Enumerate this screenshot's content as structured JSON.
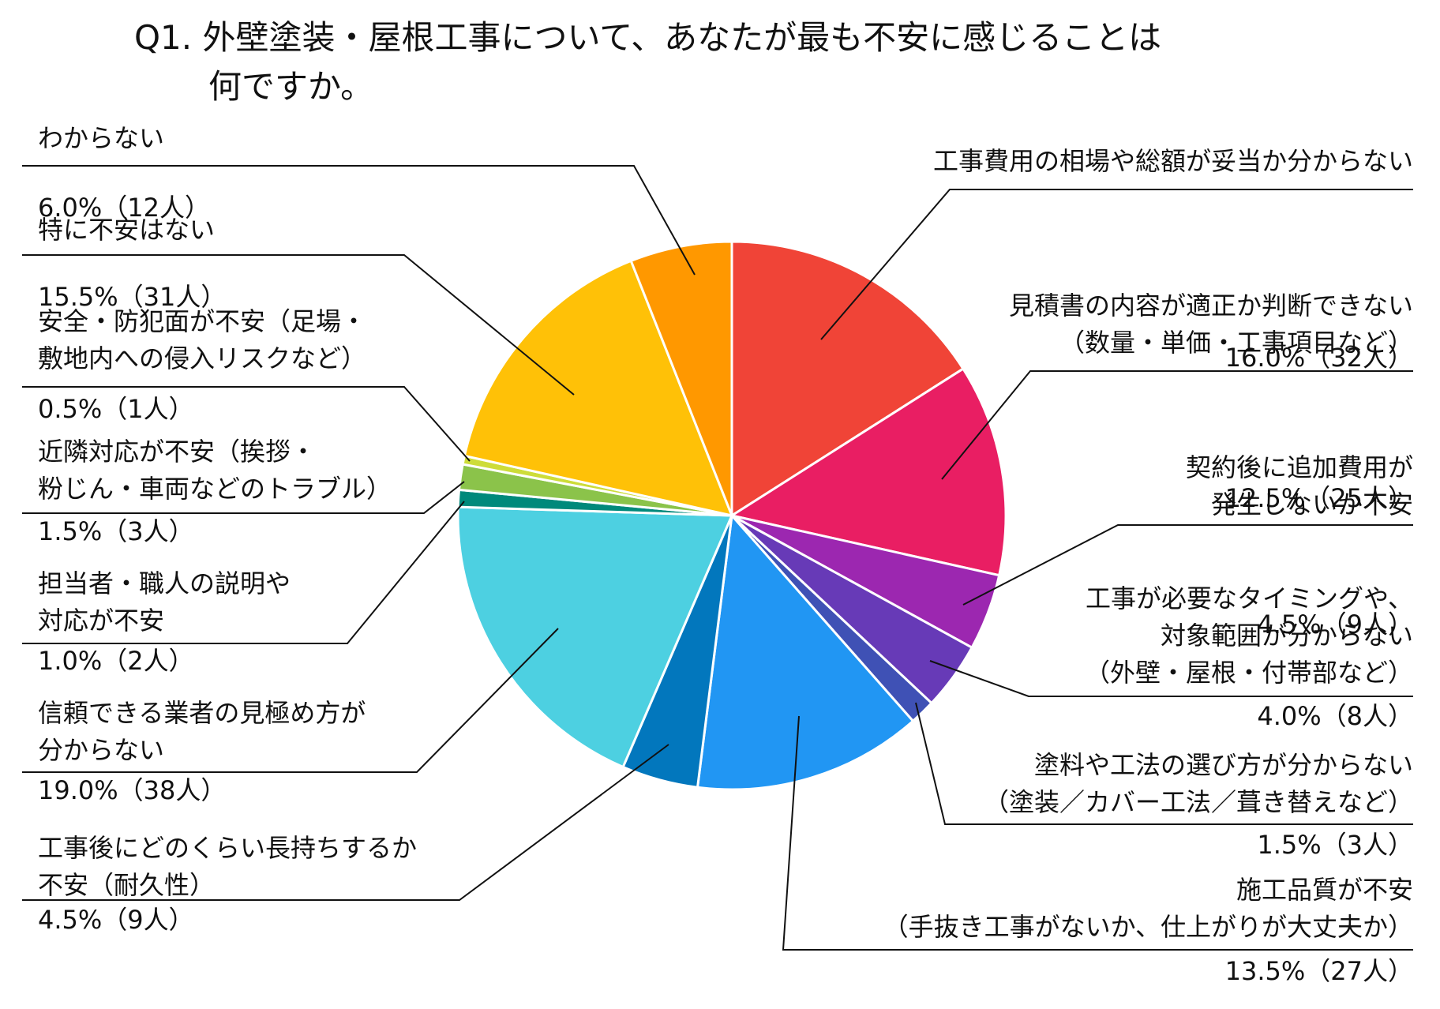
{
  "chart_data": {
    "type": "pie",
    "title_lines": [
      "Q1. 外壁塗装・屋根工事について、あなたが最も不安に感じることは",
      "何ですか。"
    ],
    "start_angle_deg": 0,
    "direction": "clockwise",
    "slices": [
      {
        "label_lines": [
          "工事費用の相場や総額が妥当か分からない"
        ],
        "value": 16.0,
        "count": 32,
        "value_label": "16.0%（32人）",
        "color": "#F04437"
      },
      {
        "label_lines": [
          "見積書の内容が適正か判断できない",
          "（数量・単価・工事項目など）"
        ],
        "value": 12.5,
        "count": 25,
        "value_label": "12.5%（25人）",
        "color": "#E91E63"
      },
      {
        "label_lines": [
          "契約後に追加費用が",
          "発生しないか不安"
        ],
        "value": 4.5,
        "count": 9,
        "value_label": "4.5%（9人）",
        "color": "#9C27B0"
      },
      {
        "label_lines": [
          "工事が必要なタイミングや、",
          "対象範囲が分からない",
          "（外壁・屋根・付帯部など）"
        ],
        "value": 4.0,
        "count": 8,
        "value_label": "4.0%（8人）",
        "color": "#673AB7"
      },
      {
        "label_lines": [
          "塗料や工法の選び方が分からない",
          "（塗装／カバー工法／葺き替えなど）"
        ],
        "value": 1.5,
        "count": 3,
        "value_label": "1.5%（3人）",
        "color": "#3F51B5"
      },
      {
        "label_lines": [
          "施工品質が不安",
          "（手抜き工事がないか、仕上がりが大丈夫か）"
        ],
        "value": 13.5,
        "count": 27,
        "value_label": "13.5%（27人）",
        "color": "#2196F3"
      },
      {
        "label_lines": [
          "工事後にどのくらい長持ちするか",
          "不安（耐久性）"
        ],
        "value": 4.5,
        "count": 9,
        "value_label": "4.5%（9人）",
        "color": "#0277BD"
      },
      {
        "label_lines": [
          "信頼できる業者の見極め方が",
          "分からない"
        ],
        "value": 19.0,
        "count": 38,
        "value_label": "19.0%（38人）",
        "color": "#4DD0E1"
      },
      {
        "label_lines": [
          "担当者・職人の説明や",
          "対応が不安"
        ],
        "value": 1.0,
        "count": 2,
        "value_label": "1.0%（2人）",
        "color": "#00897B"
      },
      {
        "label_lines": [
          "近隣対応が不安（挨拶・",
          "粉じん・車両などのトラブル）"
        ],
        "value": 1.5,
        "count": 3,
        "value_label": "1.5%（3人）",
        "color": "#8BC34A"
      },
      {
        "label_lines": [
          "安全・防犯面が不安（足場・",
          "敷地内への侵入リスクなど）"
        ],
        "value": 0.5,
        "count": 1,
        "value_label": "0.5%（1人）",
        "color": "#CDDC39"
      },
      {
        "label_lines": [
          "特に不安はない"
        ],
        "value": 15.5,
        "count": 31,
        "value_label": "15.5%（31人）",
        "color": "#FFC107"
      },
      {
        "label_lines": [
          "わからない"
        ],
        "value": 6.0,
        "count": 12,
        "value_label": "6.0%（12人）",
        "color": "#FF9800"
      }
    ],
    "legend": "none",
    "labels": "outside with leader lines"
  }
}
